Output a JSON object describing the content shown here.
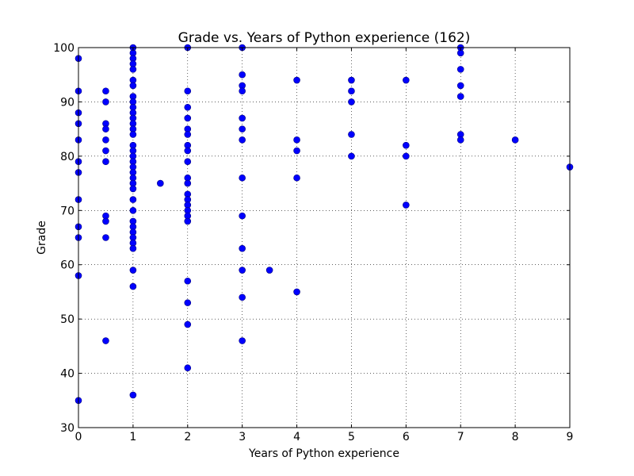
{
  "chart_data": {
    "type": "scatter",
    "title": "Grade vs. Years of Python experience (162)",
    "xlabel": "Years of Python experience",
    "ylabel": "Grade",
    "xlim": [
      0,
      9
    ],
    "ylim": [
      30,
      100
    ],
    "xticks": [
      0,
      1,
      2,
      3,
      4,
      5,
      6,
      7,
      8,
      9
    ],
    "yticks": [
      30,
      40,
      50,
      60,
      70,
      80,
      90,
      100
    ],
    "grid": true,
    "marker_color": "#0000ff",
    "marker_edge_color": "#000080",
    "points": [
      [
        0,
        98
      ],
      [
        0,
        92
      ],
      [
        0,
        88
      ],
      [
        0,
        86
      ],
      [
        0,
        83
      ],
      [
        0,
        79
      ],
      [
        0,
        77
      ],
      [
        0,
        72
      ],
      [
        0,
        67
      ],
      [
        0,
        65
      ],
      [
        0,
        58
      ],
      [
        0,
        35
      ],
      [
        0.5,
        92
      ],
      [
        0.5,
        90
      ],
      [
        0.5,
        86
      ],
      [
        0.5,
        85
      ],
      [
        0.5,
        83
      ],
      [
        0.5,
        81
      ],
      [
        0.5,
        79
      ],
      [
        0.5,
        69
      ],
      [
        0.5,
        68
      ],
      [
        0.5,
        65
      ],
      [
        0.5,
        46
      ],
      [
        1,
        100
      ],
      [
        1,
        99
      ],
      [
        1,
        98
      ],
      [
        1,
        97
      ],
      [
        1,
        96
      ],
      [
        1,
        94
      ],
      [
        1,
        93
      ],
      [
        1,
        91
      ],
      [
        1,
        90
      ],
      [
        1,
        89
      ],
      [
        1,
        88
      ],
      [
        1,
        87
      ],
      [
        1,
        86
      ],
      [
        1,
        85
      ],
      [
        1,
        84
      ],
      [
        1,
        82
      ],
      [
        1,
        81
      ],
      [
        1,
        80
      ],
      [
        1,
        79
      ],
      [
        1,
        78
      ],
      [
        1,
        77
      ],
      [
        1,
        76
      ],
      [
        1,
        75
      ],
      [
        1,
        74
      ],
      [
        1,
        72
      ],
      [
        1,
        70
      ],
      [
        1,
        68
      ],
      [
        1,
        67
      ],
      [
        1,
        66
      ],
      [
        1,
        65
      ],
      [
        1,
        64
      ],
      [
        1,
        63
      ],
      [
        1,
        59
      ],
      [
        1,
        56
      ],
      [
        1,
        36
      ],
      [
        1.5,
        75
      ],
      [
        2,
        100
      ],
      [
        2,
        92
      ],
      [
        2,
        89
      ],
      [
        2,
        87
      ],
      [
        2,
        85
      ],
      [
        2,
        84
      ],
      [
        2,
        82
      ],
      [
        2,
        81
      ],
      [
        2,
        79
      ],
      [
        2,
        76
      ],
      [
        2,
        75
      ],
      [
        2,
        73
      ],
      [
        2,
        72
      ],
      [
        2,
        71
      ],
      [
        2,
        70
      ],
      [
        2,
        69
      ],
      [
        2,
        68
      ],
      [
        2,
        57
      ],
      [
        2,
        53
      ],
      [
        2,
        49
      ],
      [
        2,
        41
      ],
      [
        3,
        100
      ],
      [
        3,
        95
      ],
      [
        3,
        93
      ],
      [
        3,
        92
      ],
      [
        3,
        87
      ],
      [
        3,
        85
      ],
      [
        3,
        83
      ],
      [
        3,
        76
      ],
      [
        3,
        69
      ],
      [
        3,
        63
      ],
      [
        3,
        59
      ],
      [
        3,
        54
      ],
      [
        3,
        46
      ],
      [
        3.5,
        59
      ],
      [
        4,
        94
      ],
      [
        4,
        83
      ],
      [
        4,
        81
      ],
      [
        4,
        76
      ],
      [
        4,
        55
      ],
      [
        5,
        94
      ],
      [
        5,
        92
      ],
      [
        5,
        90
      ],
      [
        5,
        84
      ],
      [
        5,
        80
      ],
      [
        6,
        94
      ],
      [
        6,
        82
      ],
      [
        6,
        80
      ],
      [
        6,
        71
      ],
      [
        7,
        100
      ],
      [
        7,
        99
      ],
      [
        7,
        96
      ],
      [
        7,
        93
      ],
      [
        7,
        91
      ],
      [
        7,
        84
      ],
      [
        7,
        83
      ],
      [
        8,
        83
      ],
      [
        9,
        78
      ]
    ]
  }
}
